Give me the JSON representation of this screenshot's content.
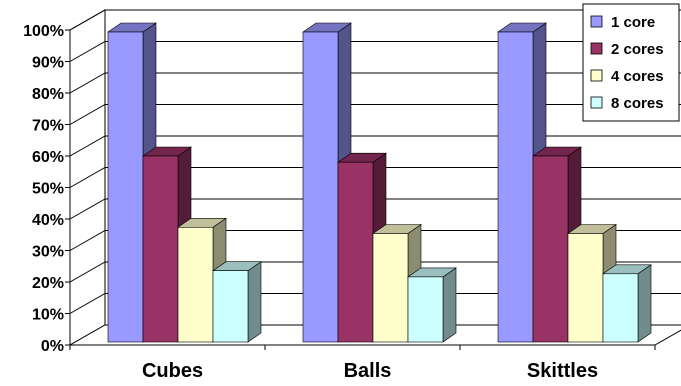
{
  "chart_data": {
    "type": "bar",
    "style": "3d-clustered-column",
    "categories": [
      "Cubes",
      "Balls",
      "Skittles"
    ],
    "series": [
      {
        "name": "1 core",
        "values": [
          100,
          100,
          100
        ],
        "color": "#9999FF"
      },
      {
        "name": "2 cores",
        "values": [
          60,
          58,
          60
        ],
        "color": "#993366"
      },
      {
        "name": "4 cores",
        "values": [
          37,
          35,
          35
        ],
        "color": "#FFFFCC"
      },
      {
        "name": "8 cores",
        "values": [
          23,
          21,
          22
        ],
        "color": "#CCFFFF"
      }
    ],
    "y_ticks": [
      "0%",
      "10%",
      "20%",
      "30%",
      "40%",
      "50%",
      "60%",
      "70%",
      "80%",
      "90%",
      "100%"
    ],
    "ylim": [
      0,
      100
    ],
    "grid": true,
    "legend": "top-right",
    "title": "",
    "xlabel": "",
    "ylabel": ""
  }
}
